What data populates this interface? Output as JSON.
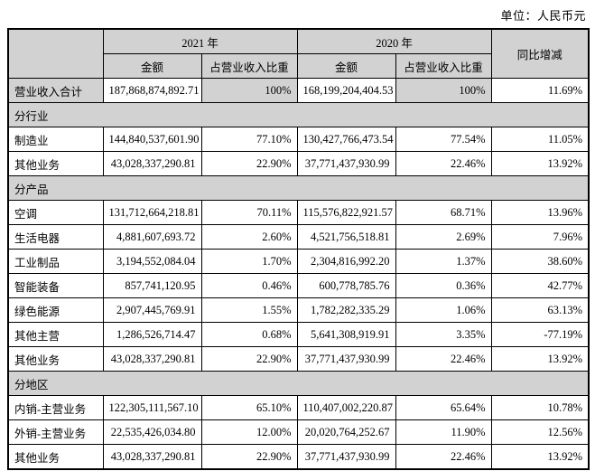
{
  "page": {
    "unit_label": "单位：人民币元"
  },
  "colors": {
    "header_bg": "#d2d2d2",
    "section_bg": "#d2d2d2",
    "border": "#000000"
  },
  "table": {
    "header": {
      "corner": "",
      "year_2021": "2021 年",
      "year_2020": "2020 年",
      "amount_2021": "金额",
      "share_2021": "占营业收入比重",
      "amount_2020": "金额",
      "share_2020": "占营业收入比重",
      "yoy": "同比增减"
    },
    "rows": [
      {
        "type": "data",
        "shaded": true,
        "label": "营业收入合计",
        "amount_2021": "187,868,874,892.71",
        "share_2021": "100%",
        "amount_2020": "168,199,204,404.53",
        "share_2020": "100%",
        "yoy": "11.69%"
      },
      {
        "type": "section",
        "label": "分行业"
      },
      {
        "type": "data",
        "label": "制造业",
        "amount_2021": "144,840,537,601.90",
        "share_2021": "77.10%",
        "amount_2020": "130,427,766,473.54",
        "share_2020": "77.54%",
        "yoy": "11.05%"
      },
      {
        "type": "data",
        "label": "其他业务",
        "amount_2021": "43,028,337,290.81",
        "share_2021": "22.90%",
        "amount_2020": "37,771,437,930.99",
        "share_2020": "22.46%",
        "yoy": "13.92%"
      },
      {
        "type": "section",
        "label": "分产品"
      },
      {
        "type": "data",
        "label": "空调",
        "amount_2021": "131,712,664,218.81",
        "share_2021": "70.11%",
        "amount_2020": "115,576,822,921.57",
        "share_2020": "68.71%",
        "yoy": "13.96%"
      },
      {
        "type": "data",
        "label": "生活电器",
        "amount_2021": "4,881,607,693.72",
        "share_2021": "2.60%",
        "amount_2020": "4,521,756,518.81",
        "share_2020": "2.69%",
        "yoy": "7.96%"
      },
      {
        "type": "data",
        "label": "工业制品",
        "amount_2021": "3,194,552,084.04",
        "share_2021": "1.70%",
        "amount_2020": "2,304,816,992.20",
        "share_2020": "1.37%",
        "yoy": "38.60%"
      },
      {
        "type": "data",
        "label": "智能装备",
        "amount_2021": "857,741,120.95",
        "share_2021": "0.46%",
        "amount_2020": "600,778,785.76",
        "share_2020": "0.36%",
        "yoy": "42.77%"
      },
      {
        "type": "data",
        "label": "绿色能源",
        "amount_2021": "2,907,445,769.91",
        "share_2021": "1.55%",
        "amount_2020": "1,782,282,335.29",
        "share_2020": "1.06%",
        "yoy": "63.13%"
      },
      {
        "type": "data",
        "label": "其他主营",
        "amount_2021": "1,286,526,714.47",
        "share_2021": "0.68%",
        "amount_2020": "5,641,308,919.91",
        "share_2020": "3.35%",
        "yoy": "-77.19%"
      },
      {
        "type": "data",
        "label": "其他业务",
        "amount_2021": "43,028,337,290.81",
        "share_2021": "22.90%",
        "amount_2020": "37,771,437,930.99",
        "share_2020": "22.46%",
        "yoy": "13.92%"
      },
      {
        "type": "section",
        "label": "分地区"
      },
      {
        "type": "data",
        "label": "内销-主营业务",
        "amount_2021": "122,305,111,567.10",
        "share_2021": "65.10%",
        "amount_2020": "110,407,002,220.87",
        "share_2020": "65.64%",
        "yoy": "10.78%"
      },
      {
        "type": "data",
        "label": "外销-主营业务",
        "amount_2021": "22,535,426,034.80",
        "share_2021": "12.00%",
        "amount_2020": "20,020,764,252.67",
        "share_2020": "11.90%",
        "yoy": "12.56%"
      },
      {
        "type": "data",
        "label": "其他业务",
        "amount_2021": "43,028,337,290.81",
        "share_2021": "22.90%",
        "amount_2020": "37,771,437,930.99",
        "share_2020": "22.46%",
        "yoy": "13.92%"
      }
    ]
  }
}
